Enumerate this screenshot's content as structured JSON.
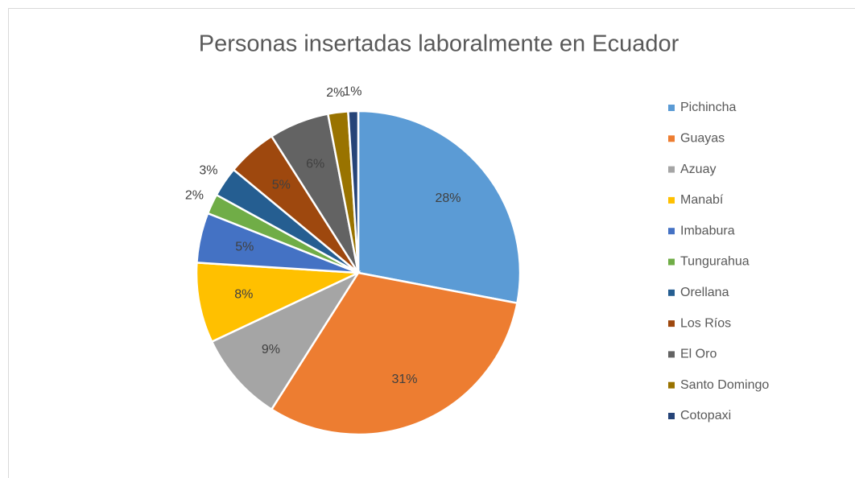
{
  "chart_data": {
    "type": "pie",
    "title": "Personas insertadas laboralmente en Ecuador",
    "categories": [
      "Pichincha",
      "Guayas",
      "Azuay",
      "Manabí",
      "Imbabura",
      "Tungurahua",
      "Orellana",
      "Los Ríos",
      "El Oro",
      "Santo Domingo",
      "Cotopaxi"
    ],
    "values": [
      28,
      31,
      9,
      8,
      5,
      2,
      3,
      5,
      6,
      2,
      1
    ],
    "value_labels": [
      "28%",
      "31%",
      "9%",
      "8%",
      "5%",
      "2%",
      "3%",
      "5%",
      "6%",
      "2%",
      "1%"
    ],
    "colors": [
      "#5b9bd5",
      "#ed7d31",
      "#a5a5a5",
      "#ffc000",
      "#4472c4",
      "#70ad47",
      "#255e91",
      "#9e480e",
      "#636363",
      "#997300",
      "#264478"
    ],
    "legend": "right"
  }
}
